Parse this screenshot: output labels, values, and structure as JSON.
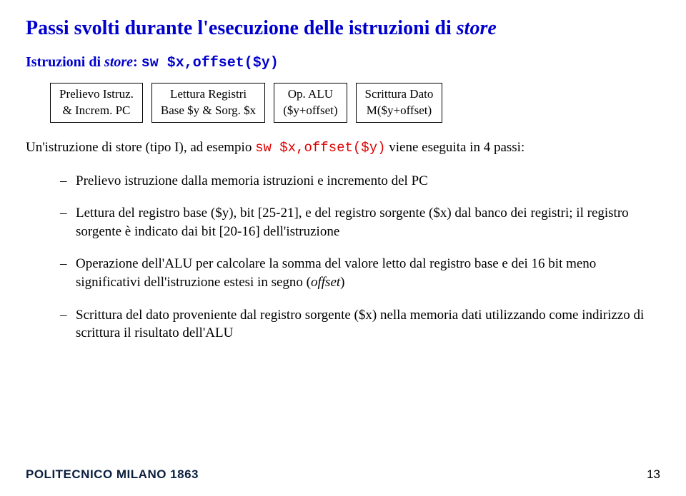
{
  "title_pre": "Passi svolti durante l'esecuzione delle istruzioni di ",
  "title_store": "store",
  "subtitle_pre": "Istruzioni di ",
  "subtitle_store": "store",
  "subtitle_post": ": ",
  "subtitle_code": "sw $x,offset($y)",
  "pipeline": [
    "Prelievo Istruz.\n& Increm. PC",
    "Lettura Registri\nBase $y & Sorg. $x",
    "Op. ALU\n($y+offset)",
    "Scrittura Dato\nM($y+offset)"
  ],
  "intro_a": "Un'istruzione di store (tipo I), ad esempio ",
  "intro_code": "sw $x,offset($y)",
  "intro_b": " viene eseguita in 4 passi:",
  "bullets": [
    "Prelievo istruzione dalla memoria istruzioni e incremento del PC",
    "Lettura del registro base ($y), bit [25-21], e del registro sorgente ($x) dal banco dei registri; il registro sorgente è indicato dai bit [20-16] dell'istruzione",
    "Operazione dell'ALU per calcolare la somma del valore letto dal registro base e dei 16 bit meno significativi dell'istruzione estesi in segno (",
    "Scrittura del dato proveniente dal registro sorgente ($x) nella memoria dati utilizzando come indirizzo di scrittura il risultato dell'ALU"
  ],
  "offset_word": "offset",
  "footer_logo": "POLITECNICO MILANO 1863",
  "page_number": "13"
}
